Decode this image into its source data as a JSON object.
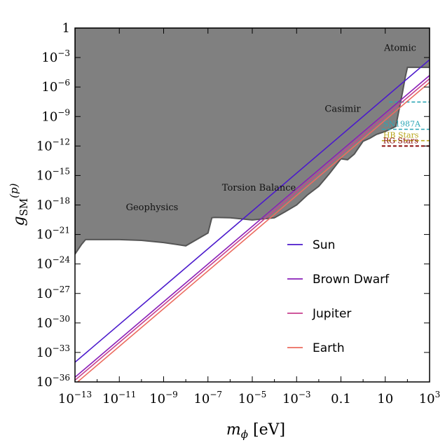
{
  "chart_data": {
    "type": "line",
    "title": "",
    "xlabel_main": "m",
    "xlabel_sub": "ϕ",
    "xlabel_unit": "[eV]",
    "ylabel_main": "g",
    "ylabel_sub": "SM",
    "ylabel_sup": "(p)",
    "x_scale": "log",
    "y_scale": "log",
    "xlim": [
      1e-13,
      1000
    ],
    "ylim": [
      1e-36,
      1
    ],
    "x_ticks": [
      {
        "value": 1e-13,
        "base": "10",
        "exp": "−13"
      },
      {
        "value": 1e-11,
        "base": "10",
        "exp": "−11"
      },
      {
        "value": 1e-09,
        "base": "10",
        "exp": "−9"
      },
      {
        "value": 1e-07,
        "base": "10",
        "exp": "−7"
      },
      {
        "value": 1e-05,
        "base": "10",
        "exp": "−5"
      },
      {
        "value": 0.001,
        "base": "10",
        "exp": "−3"
      },
      {
        "value": 0.1,
        "base": "0.1",
        "exp": ""
      },
      {
        "value": 10,
        "base": "10",
        "exp": ""
      },
      {
        "value": 1000,
        "base": "10",
        "exp": "3"
      }
    ],
    "y_ticks": [
      {
        "value": 1,
        "base": "1",
        "exp": ""
      },
      {
        "value": 0.001,
        "base": "10",
        "exp": "−3"
      },
      {
        "value": 1e-06,
        "base": "10",
        "exp": "−6"
      },
      {
        "value": 1e-09,
        "base": "10",
        "exp": "−9"
      },
      {
        "value": 1e-12,
        "base": "10",
        "exp": "−12"
      },
      {
        "value": 1e-15,
        "base": "10",
        "exp": "−15"
      },
      {
        "value": 1e-18,
        "base": "10",
        "exp": "−18"
      },
      {
        "value": 1e-21,
        "base": "10",
        "exp": "−21"
      },
      {
        "value": 1e-24,
        "base": "10",
        "exp": "−24"
      },
      {
        "value": 1e-27,
        "base": "10",
        "exp": "−27"
      },
      {
        "value": 1e-30,
        "base": "10",
        "exp": "−30"
      },
      {
        "value": 1e-33,
        "base": "10",
        "exp": "−33"
      },
      {
        "value": 1e-36,
        "base": "10",
        "exp": "−36"
      }
    ],
    "grid": false,
    "legend_position": "lower-right",
    "excluded_region": {
      "color": "#808080",
      "edge_color": "#555555",
      "boundary": [
        [
          1e-13,
          1e-23
        ],
        [
          2e-13,
          1e-22
        ],
        [
          3e-13,
          3e-22
        ],
        [
          1e-11,
          3e-22
        ],
        [
          1e-10,
          2.5e-22
        ],
        [
          1e-09,
          1.5e-22
        ],
        [
          1e-08,
          7e-23
        ],
        [
          1e-07,
          1.4e-21
        ],
        [
          1.5e-07,
          5e-20
        ],
        [
          2e-07,
          5.5e-20
        ],
        [
          1e-06,
          5e-20
        ],
        [
          1e-05,
          3e-20
        ],
        [
          0.0001,
          5e-20
        ],
        [
          0.0003,
          2e-19
        ],
        [
          0.001,
          1e-18
        ],
        [
          0.003,
          1e-17
        ],
        [
          0.01,
          8e-17
        ],
        [
          0.03,
          1.5e-15
        ],
        [
          0.1,
          5e-14
        ],
        [
          0.2,
          4e-14
        ],
        [
          0.4,
          1.5e-13
        ],
        [
          1,
          3e-12
        ],
        [
          2,
          6e-12
        ],
        [
          4,
          1.5e-11
        ],
        [
          10,
          3e-11
        ],
        [
          30,
          1e-10
        ],
        [
          60,
          3e-07
        ],
        [
          80,
          1e-05
        ],
        [
          100,
          0.0001
        ],
        [
          1000,
          0.0001
        ]
      ]
    },
    "series": [
      {
        "name": "Sun",
        "color": "#4B1ACC",
        "points": [
          [
            1e-13,
            1e-34
          ],
          [
            1000,
            0.0006
          ]
        ]
      },
      {
        "name": "Brown Dwarf",
        "color": "#8A1FB8",
        "points": [
          [
            1e-13,
            3e-36
          ],
          [
            1000,
            1.5e-05
          ]
        ]
      },
      {
        "name": "Jupiter",
        "color": "#C8418E",
        "points": [
          [
            1e-13,
            1.5e-36
          ],
          [
            1000,
            7e-06
          ]
        ]
      },
      {
        "name": "Earth",
        "color": "#EC6C5F",
        "points": [
          [
            1e-13,
            6e-37
          ],
          [
            1000,
            3e-06
          ]
        ]
      }
    ],
    "reference_lines": [
      {
        "name": "SN1987A",
        "color": "#2BA6B5",
        "y": 5e-11,
        "x_range": [
          7,
          1000
        ]
      },
      {
        "name": "",
        "color": "#2BA6B5",
        "y": 3e-08,
        "x_range": [
          15,
          1000
        ]
      },
      {
        "name": "HB Stars",
        "color": "#B8A51A",
        "y": 3.5e-12,
        "x_range": [
          7,
          1000
        ]
      },
      {
        "name": "RG Stars",
        "color": "#8B0A0A",
        "y": 1e-12,
        "x_range": [
          7,
          1000
        ]
      }
    ],
    "region_labels": [
      {
        "text": "Atomic",
        "x": 250,
        "y": 0.005
      },
      {
        "text": "Casimir",
        "x": 0.12,
        "y": 3e-09
      },
      {
        "text": "Torsion Balance",
        "x": 2e-05,
        "y": 3e-17
      },
      {
        "text": "Geophysics",
        "x": 3e-10,
        "y": 3e-19
      }
    ],
    "legend": [
      "Sun",
      "Brown Dwarf",
      "Jupiter",
      "Earth"
    ]
  }
}
